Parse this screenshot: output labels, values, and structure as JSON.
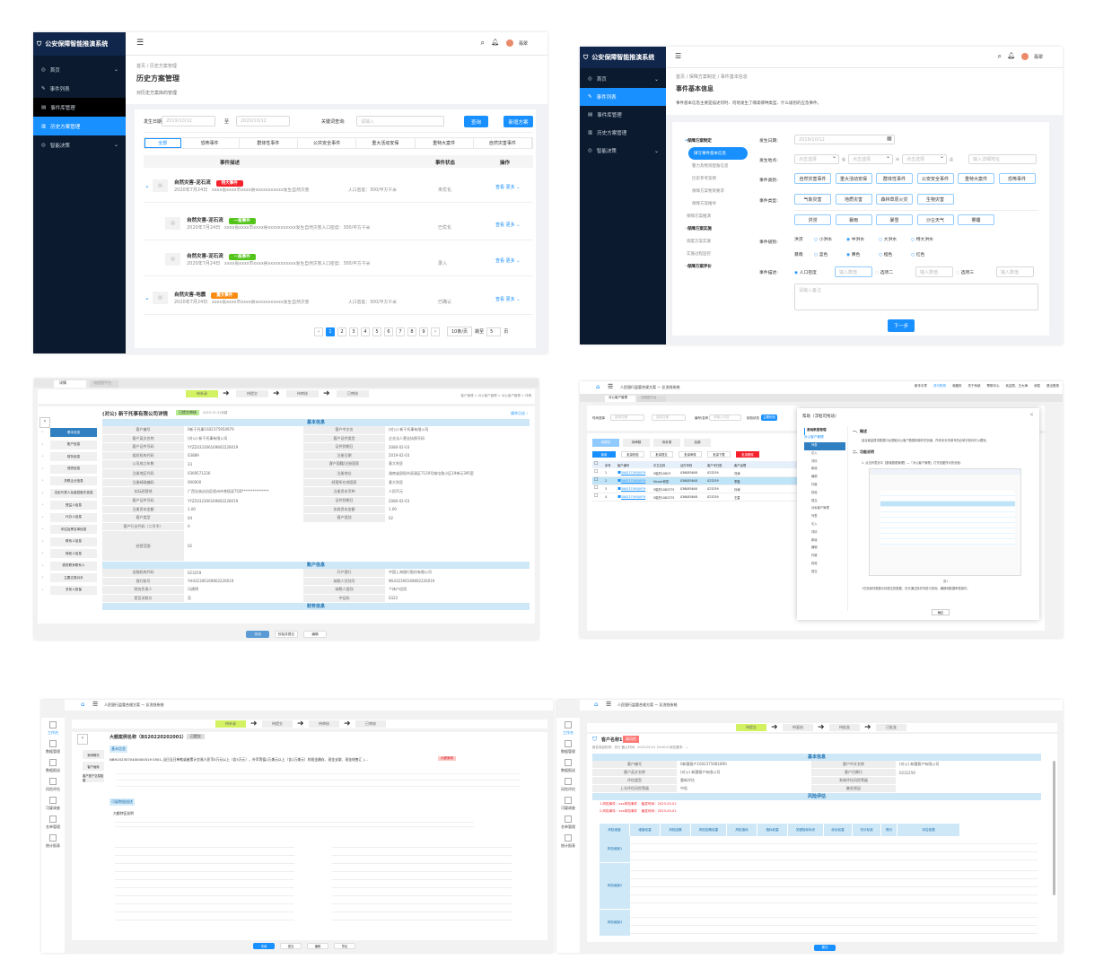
{
  "p1": {
    "app_title": "公安保障智能推演系统",
    "nav": [
      {
        "label": "首页",
        "icon": "home-icon",
        "chev": true
      },
      {
        "label": "事件列表",
        "icon": "edit-icon",
        "chev": false
      },
      {
        "label": "事件库管理",
        "icon": "database-icon",
        "chev": false
      },
      {
        "label": "历史方案管理",
        "icon": "book-icon",
        "chev": false
      },
      {
        "label": "智能决策",
        "icon": "decision-icon",
        "chev": true
      }
    ],
    "user": "翡翠",
    "breadcrumb": [
      "首页",
      "历史方案管理"
    ],
    "title": "历史方案管理",
    "subtitle": "对历史方案库的管理",
    "filter": {
      "date_label": "发生日期:",
      "date_from": "2019/10/12",
      "to": "至",
      "date_to": "2020/10/12",
      "keyword_label": "关键词查询:",
      "keyword_placeholder": "请输入",
      "query": "查询",
      "add": "新增方案"
    },
    "tabs": [
      "全部",
      "恐怖事件",
      "群体性事件",
      "公共安全事件",
      "重大活动安保",
      "重特大案件",
      "自然灾害事件"
    ],
    "columns": [
      "事件描述",
      "事件状态",
      "操作"
    ],
    "rows": [
      {
        "title": "自然灾害-泥石流",
        "tag": "特大事件",
        "tag_color": "#f5222d",
        "date": "2020年7月24日",
        "desc": "xxxx省xxxx市xxxx县xxxxxxxxxxx发生自然灾害",
        "density": "人口密度：300/平方千米",
        "status": "未优化",
        "child": false
      },
      {
        "title": "自然灾害-泥石流",
        "tag": "一般事件",
        "tag_color": "#52c41a",
        "date": "2020年7月24日",
        "desc": "xxxx省xxxx市xxxx县xxxxxxxxxxx发生自然灾害人口密度：300/平方千米",
        "density": "",
        "status": "已优化",
        "child": true
      },
      {
        "title": "自然灾害-泥石流",
        "tag": "一般事件",
        "tag_color": "#52c41a",
        "date": "2020年7月24日",
        "desc": "xxxx省xxxx市xxxx县xxxxxxxxxxx发生自然灾害人口密度：300/平方千米",
        "density": "",
        "status": "录入",
        "child": true
      },
      {
        "title": "自然灾害-地震",
        "tag": "重大事件",
        "tag_color": "#fa8c16",
        "date": "2020年7月24日",
        "desc": "xxxx省xxxx市xxxx县xxxxxxxxxxx发生自然灾害",
        "density": "人口密度：300/平方千米",
        "status": "已确认",
        "child": false
      }
    ],
    "actions": {
      "view": "查看",
      "more": "更多"
    },
    "pagination": {
      "pages": [
        "1",
        "2",
        "3",
        "4",
        "5",
        "6",
        "7",
        "8",
        "9"
      ],
      "current": "1",
      "size": "10条/页",
      "jump": "跳至",
      "jump_value": "5",
      "page_unit": "页"
    }
  },
  "p2": {
    "app_title": "公安保障智能推演系统",
    "nav": [
      {
        "label": "首页",
        "chev": true
      },
      {
        "label": "事件列表",
        "chev": false
      },
      {
        "label": "事件库管理",
        "chev": false
      },
      {
        "label": "历史方案管理",
        "chev": false
      },
      {
        "label": "智能决策",
        "chev": true
      }
    ],
    "user": "翡翠",
    "breadcrumb": "首页 / 保障方案制定 / 事件基本信息",
    "title": "事件基本信息",
    "desc": "事件基本信息主要是描述何时、何地发生了哪类哪种类型、什么级别的应急事件。",
    "steps": [
      {
        "label": "保障方案制定",
        "level": "head"
      },
      {
        "label": "填写事件基本信息",
        "level": "active"
      },
      {
        "label": "警力及物资配备信息",
        "level": "sub"
      },
      {
        "label": "历史参考案例",
        "level": "sub"
      },
      {
        "label": "保障方案物资要求",
        "level": "sub"
      },
      {
        "label": "保障方案推导",
        "level": "sub"
      },
      {
        "label": "保障方案推演",
        "level": "sub2"
      },
      {
        "label": "保障方案实施",
        "level": "head"
      },
      {
        "label": "调度方案实施",
        "level": "sub2"
      },
      {
        "label": "实施过程监控",
        "level": "sub2"
      },
      {
        "label": "保障方案评价",
        "level": "head"
      }
    ],
    "labels": {
      "date": "发生日期:",
      "place": "发生地点:",
      "category": "事件类别:",
      "type": "事件类型:",
      "level": "事件级别:",
      "desc": "事件描述:"
    },
    "date_value": "2019/10/12",
    "place": {
      "select_placeholder": "点击选择",
      "province": "省",
      "city": "市",
      "county": "县",
      "detail_placeholder": "输入详细地址"
    },
    "categories": [
      "自然灾害事件",
      "重大活动安保",
      "群体性事件",
      "公安安全事件",
      "重特大案件",
      "恐怖事件"
    ],
    "types": [
      "气象灾害",
      "地质灾害",
      "森林草原火灾",
      "生物灾害"
    ],
    "subtypes": [
      "洪涝",
      "暴雨",
      "暴雪",
      "沙尘天气",
      "雾霾"
    ],
    "level_rows": [
      {
        "name": "洪涝",
        "options": [
          "小洪水",
          "中洪水",
          "大洪水",
          "特大洪水"
        ],
        "selected": "中洪水"
      },
      {
        "name": "暴雨",
        "options": [
          "蓝色",
          "黄色",
          "橙色",
          "红色"
        ],
        "selected": "黄色"
      }
    ],
    "desc_options": [
      "人口密度",
      "选项二",
      "选项三"
    ],
    "desc_selected": "人口密度",
    "number_placeholder": "输入数值",
    "remark_placeholder": "请输入备注",
    "next": "下一步"
  },
  "p3": {
    "tabs": [
      "详情",
      "流程图平台"
    ],
    "flow": [
      "待补录",
      "待提交",
      "待审核",
      "已审核"
    ],
    "crumb": "客户管理 > 对公客户管理 > 对公客户管理 > 详情",
    "title": "(对公) 新干托事有限公司详情",
    "status": "已提交审核",
    "date": "2023-12-31创建",
    "log": "操作日志 ›",
    "side": [
      "基本信息",
      "账户信息",
      "财务信息",
      "资质信息",
      "关联企业信息",
      "法定代表人及高层股东信息",
      "受益人信息",
      "代办人信息",
      "评估及黑名单信息",
      "联系人信息",
      "授权人信息",
      "税务联系联系人",
      "主要交易对手",
      "关系人担保"
    ],
    "sections": [
      "基本信息",
      "账户信息",
      "财务信息"
    ],
    "basic": [
      [
        "客户编号",
        "0新干托事1602375950979",
        "客户中文名",
        "(对公) 新干托事有限公司"
      ],
      [
        "客户英文名称",
        "(对公) 新干托事有限公司",
        "客户证件类型",
        "企业法人营业执照号码"
      ],
      [
        "客户证件号码",
        "YYZZ432306169802226019",
        "证件到期日",
        "2080-02-03"
      ],
      [
        "组织机构代码",
        "03889",
        "注册日期",
        "2019-02-03"
      ],
      [
        "公司成立年数",
        "23",
        "客户国籍/注册国家",
        "意大利亚"
      ],
      [
        "注册地区代码",
        "0369571226",
        "注册地址",
        "湖南省邵阳市双清区7120号城屯角小区19单元395室"
      ],
      [
        "注册邮政编码",
        "000000",
        "经营所在地国家",
        "意大利亚"
      ],
      [
        "实际经营地",
        "广西壮族自治区梧州市苍梧县TQD***************",
        "注册资本币种",
        "人民币元"
      ],
      [
        "客户证件号码",
        "YYZZ432306169802226019",
        "证件到期日",
        "2080-02-03"
      ],
      [
        "注册资本金额",
        "1.00",
        "实收资本金额",
        "1.00"
      ],
      [
        "客户类型",
        "04",
        "客户类别",
        "02"
      ],
      [
        "客户行业代码（二号令）",
        "A",
        "",
        ""
      ],
      [
        "经营范围",
        "02",
        "",
        ""
      ]
    ],
    "account": [
      [
        "金融机构代码",
        "023259",
        "开户银行",
        "中国上海银行股份有限公司"
      ],
      [
        "银行账号",
        "YH432306169802226019",
        "纳税人识别号",
        "NS432306169802226019"
      ],
      [
        "财务负责人",
        "冯建明",
        "纳税人类别",
        "个体户适用"
      ],
      [
        "是否关联方",
        "否",
        "中征码",
        "0322"
      ]
    ],
    "buttons": [
      "关闭",
      "校验并提交",
      "编辑"
    ]
  },
  "p4": {
    "system": "人民银行监管合规方案 — 反洗钱系统",
    "top_links": [
      "新手引导",
      "总行机构",
      "收藏夹",
      "关于系统",
      "帮助中心",
      "欢迎您，王大海",
      "消息",
      "退出登录"
    ],
    "tabs": [
      "对公客户管理",
      "流程图平台"
    ],
    "filters": {
      "time": "时间选择",
      "start": "选择日期",
      "end": "选择日期",
      "code": "编号/名称",
      "code_placeholder": "请输入内容",
      "status": "检验状态",
      "status_value": "主题校验"
    },
    "status_tabs": [
      "待提交",
      "待审核",
      "待补录",
      "全部"
    ],
    "actions": [
      "新增",
      "批量校验",
      "批量提交",
      "批量审核",
      "批量下载",
      "批量删除"
    ],
    "columns": [
      "序号",
      "客户编号",
      "中文名称",
      "证件号码",
      "客户号归属",
      "客户经理"
    ],
    "rows": [
      [
        "1",
        "5062375950979",
        "5晓杰10823",
        "036085648",
        "023259",
        "刘涛"
      ],
      [
        "2",
        "5062375950979",
        "Hicoer研发",
        "036085648",
        "023259",
        "李磊"
      ],
      [
        "3",
        "5062375950979",
        "5晓杰1082375",
        "036085648",
        "023259",
        "孙涛"
      ],
      [
        "4",
        "5062375950979",
        "5晓杰1082375",
        "036085648",
        "023259",
        "王雷"
      ]
    ],
    "help": {
      "title": "帮助（浮框可拖动）",
      "tree_head": "基础数据管理",
      "tree_group": "对公客户管理",
      "tree_items": [
        "列表",
        "引入",
        "详情",
        "新增",
        "编辑",
        "作废",
        "校验",
        "提交",
        "对私客户管理",
        "列表",
        "引入",
        "详情",
        "新增",
        "编辑",
        "作废",
        "校验",
        "提交"
      ],
      "h1": "一、概述",
      "p1": "结合客监提供数据中台提取对公客户数据和操作的页面，所有未补充填写的必填字段均可以看到。",
      "h2": "二、功能说明",
      "p2": "1. 点击列表页中【基础数据管理】—「对公客户管理」打开如图所示的页面：",
      "figure_caption": "图1",
      "notes": "•在页面列表展示待提交的数据，在可通过操作列进行查询、编辑和数据审核操作。",
      "ok": "确定"
    }
  },
  "p5": {
    "system": "人民银行监管合规方案 — 反洗钱系统",
    "left_nav": [
      "工作台",
      "数据管理",
      "数据报送",
      "风险评估",
      "可疑调查",
      "名单管理",
      "统计报表"
    ],
    "flow": [
      "待补录",
      "待提交",
      "待审核",
      "已审核"
    ],
    "title": "大额案例名称（BS20220202001）",
    "status": "已提交",
    "side": [
      "案例概况",
      "客户画像",
      "客户账户交易链路"
    ],
    "section1": "基本信息",
    "case_line": "NBH2023070400000019 0501-当日当日单笔或者累计交易人民币5万元以上（含5万元），外币等值1万美元以上（含1万美元）的现金缴存、现金支取、现金结售汇 (...",
    "case_tag": "大额案例",
    "section2": "可疑数据描述",
    "subhead": "大额特征说明",
    "buttons": [
      "关闭",
      "提交",
      "编辑",
      "导出"
    ]
  },
  "p6": {
    "system": "人民银行监管合规方案 — 反洗钱系统",
    "left_nav": [
      "工作台",
      "数据管理",
      "数据报送",
      "风险评估",
      "可疑调查",
      "名单管理",
      "统计报表"
    ],
    "flow": [
      "待提交",
      "待复核",
      "待批准",
      "已批准"
    ],
    "title": "客户名称1",
    "badge": "高风险",
    "meta": "报告发起机构：总行    截止时间：2023-05-01 24:00:0    报告要求：—",
    "sections": [
      "基本信息",
      "风险评估"
    ],
    "basic": [
      [
        "客户编号",
        "0新疆客户1602375681890",
        "客户中文名称",
        "(对公) 新疆客户有限公司"
      ],
      [
        "客户英文名称",
        "(对公) 新疆客户有限公司",
        "客户归属行",
        "0231259"
      ],
      [
        "评估类型",
        "重新评估",
        "系统评估风险等级",
        ""
      ],
      [
        "上次评估风险等级",
        "中低",
        "触发原因",
        ""
      ]
    ],
    "risk_events": [
      "1.风险事件：xxx风险事件    触发时间：2023-03-01",
      "2.风险事件：xxx风险事件    触发时间：2023-03-01"
    ],
    "columns": [
      "风险维度",
      "维度权重",
      "风险因素",
      "风险因素权重",
      "风险指标",
      "指标权重",
      "关键指标标识",
      "综合权重",
      "评分标准",
      "得分",
      "评估依据"
    ],
    "groups": [
      "风险维度1",
      "风险维度2",
      "风险维度3"
    ],
    "button": "提交"
  },
  "colors": {
    "primary": "#1890ff",
    "sidebar": "#0b1a2f",
    "danger": "#f5222d",
    "success": "#52c41a",
    "warning": "#fa8c16",
    "section": "#cfe8f7"
  }
}
